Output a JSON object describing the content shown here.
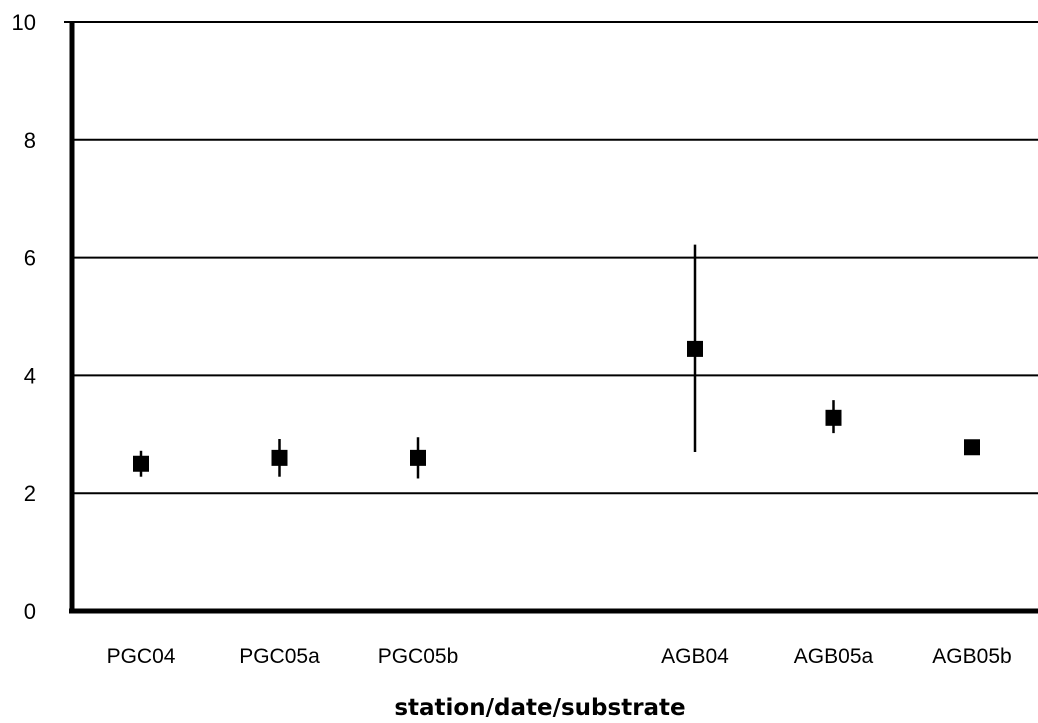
{
  "chart_data": {
    "type": "scatter",
    "title": "",
    "xlabel": "station/date/substrate",
    "ylabel": "",
    "ylim": [
      0,
      10
    ],
    "yticks": [
      0,
      2,
      4,
      6,
      8,
      10
    ],
    "grid": true,
    "legend": "none",
    "categories": [
      "PGC04",
      "PGC05a",
      "PGC05b",
      "",
      "AGB04",
      "AGB05a",
      "AGB05b"
    ],
    "series": [
      {
        "values": [
          2.5,
          2.6,
          2.6,
          null,
          4.45,
          3.28,
          2.78
        ],
        "error_low": [
          2.28,
          2.28,
          2.25,
          null,
          2.7,
          3.02,
          2.78
        ],
        "error_high": [
          2.72,
          2.92,
          2.95,
          null,
          6.22,
          3.58,
          2.78
        ],
        "marker": "square"
      }
    ],
    "colors": {
      "marker": "#000000",
      "axis": "#000000",
      "grid": "#000000"
    }
  }
}
